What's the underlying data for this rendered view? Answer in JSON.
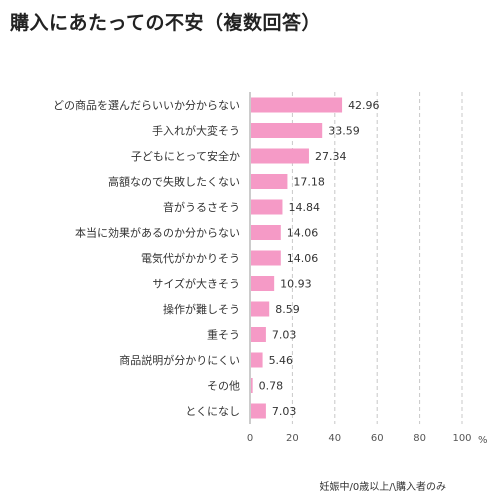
{
  "title": "購入にあたっての不安（複数回答）",
  "note": "妊娠中/0歳以上/\\購入者のみ",
  "chart_data": {
    "type": "bar",
    "orientation": "horizontal",
    "categories": [
      "どの商品を選んだらいいか分からない",
      "手入れが大変そう",
      "子どもにとって安全か",
      "高額なので失敗したくない",
      "音がうるさそう",
      "本当に効果があるのか分からない",
      "電気代がかかりそう",
      "サイズが大きそう",
      "操作が難しそう",
      "重そう",
      "商品説明が分かりにくい",
      "その他",
      "とくになし"
    ],
    "values": [
      42.96,
      33.59,
      27.34,
      17.18,
      14.84,
      14.06,
      14.06,
      10.93,
      8.59,
      7.03,
      5.46,
      0.78,
      7.03
    ],
    "value_labels": [
      "42.96",
      "33.59",
      "27.34",
      "17.18",
      "14.84",
      "14.06",
      "14.06",
      "10.93",
      "8.59",
      "7.03",
      "5.46",
      "0.78",
      "7.03"
    ],
    "xlim": [
      0,
      100
    ],
    "xticks": [
      "0",
      "20",
      "40",
      "60",
      "80",
      "100"
    ],
    "unit": "%",
    "grid": "vertical dashed",
    "bar_color": "#f59ac6",
    "grid_color": "#c8c8c8",
    "axis_color": "#999999"
  }
}
